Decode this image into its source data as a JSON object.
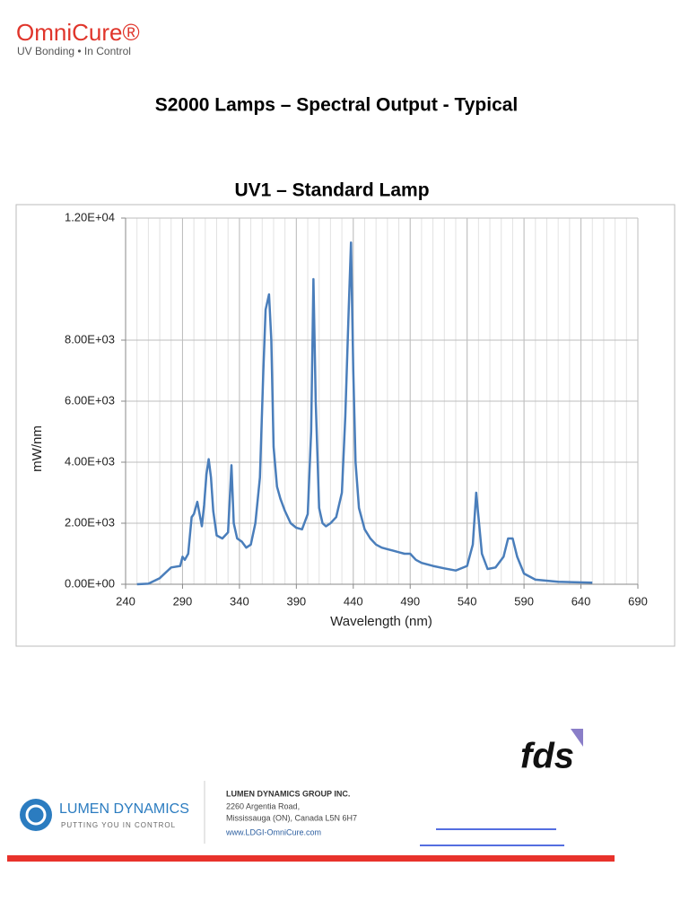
{
  "header": {
    "brand": "OmniCure®",
    "tagline": "UV Bonding • In Control"
  },
  "title": "S2000 Lamps – Spectral Output - Typical",
  "chart_data": {
    "type": "line",
    "title": "UV1 – Standard Lamp",
    "xlabel": "Wavelength (nm)",
    "ylabel": "mW/nm",
    "color": "#4a7ebb",
    "grid": true,
    "x_minor_grid": true,
    "xlim": [
      240,
      690
    ],
    "xticks": [
      240,
      290,
      340,
      390,
      440,
      490,
      540,
      590,
      640,
      690
    ],
    "ylim": [
      0,
      12000
    ],
    "yticks": [
      {
        "value": 0,
        "label": "0.00E+00"
      },
      {
        "value": 2000,
        "label": "2.00E+03"
      },
      {
        "value": 4000,
        "label": "4.00E+03"
      },
      {
        "value": 6000,
        "label": "6.00E+03"
      },
      {
        "value": 8000,
        "label": "8.00E+03"
      },
      {
        "value": 12000,
        "label": "1.20E+04"
      }
    ],
    "x": [
      250,
      260,
      270,
      280,
      288,
      290,
      292,
      295,
      298,
      300,
      303,
      305,
      307,
      309,
      311,
      313,
      315,
      317,
      320,
      325,
      330,
      333,
      335,
      338,
      342,
      346,
      350,
      354,
      358,
      361,
      363,
      366,
      368,
      370,
      373,
      376,
      380,
      385,
      390,
      395,
      400,
      403,
      405,
      407,
      410,
      413,
      416,
      420,
      425,
      430,
      433,
      436,
      438,
      440,
      442,
      445,
      450,
      455,
      460,
      465,
      470,
      475,
      480,
      485,
      490,
      495,
      500,
      510,
      520,
      530,
      540,
      545,
      548,
      550,
      553,
      558,
      565,
      572,
      576,
      580,
      584,
      590,
      600,
      620,
      650
    ],
    "values": [
      0,
      20,
      200,
      550,
      600,
      900,
      800,
      1000,
      2200,
      2300,
      2700,
      2300,
      1900,
      2600,
      3600,
      4100,
      3500,
      2400,
      1600,
      1500,
      1700,
      3900,
      2000,
      1500,
      1400,
      1200,
      1300,
      2000,
      3500,
      7000,
      9000,
      9500,
      8000,
      4500,
      3200,
      2800,
      2400,
      2000,
      1850,
      1800,
      2300,
      5000,
      10000,
      6000,
      2500,
      2000,
      1900,
      2000,
      2200,
      3000,
      5500,
      9000,
      11200,
      7000,
      4000,
      2500,
      1800,
      1500,
      1300,
      1200,
      1150,
      1100,
      1050,
      1000,
      1000,
      800,
      700,
      600,
      520,
      450,
      600,
      1300,
      3000,
      2200,
      1000,
      500,
      550,
      900,
      1500,
      1500,
      900,
      350,
      150,
      80,
      50
    ]
  },
  "footer": {
    "partner": "fds",
    "company": "LUMEN DYNAMICS",
    "slogan": "PUTTING YOU IN CONTROL",
    "address": [
      "LUMEN DYNAMICS GROUP INC.",
      "2260 Argentia Road,",
      "Mississauga (ON), Canada  L5N 6H7",
      "www.LDGI-OmniCure.com"
    ]
  }
}
